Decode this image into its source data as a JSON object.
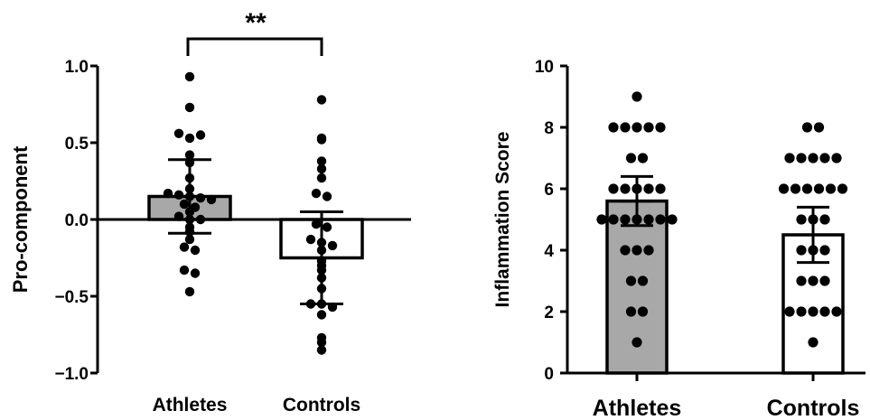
{
  "chart_data": [
    {
      "type": "bar",
      "ylabel": "Pro-component",
      "xlabel": "",
      "ylim": [
        -1.0,
        1.0
      ],
      "yticks": [
        "1.0",
        "0.5",
        "0.0",
        "−0.5",
        "−1.0"
      ],
      "categories": [
        "Athletes",
        "Controls"
      ],
      "bar_colors": [
        "#a8a8a8",
        "#ffffff"
      ],
      "series": [
        {
          "values": [
            0.15,
            -0.25
          ],
          "error": [
            0.24,
            0.3
          ]
        }
      ],
      "points": [
        [
          0.93,
          0.73,
          0.56,
          0.53,
          0.55,
          0.42,
          0.37,
          0.27,
          0.2,
          0.17,
          0.16,
          0.15,
          0.14,
          0.13,
          0.1,
          0.08,
          0.05,
          0.02,
          0.0,
          0.0,
          -0.05,
          -0.08,
          -0.13,
          -0.18,
          -0.2,
          -0.33,
          -0.35,
          -0.47
        ],
        [
          0.78,
          0.53,
          0.52,
          0.38,
          0.33,
          0.27,
          0.17,
          0.15,
          -0.03,
          -0.05,
          -0.13,
          -0.15,
          -0.17,
          -0.2,
          -0.27,
          -0.3,
          -0.33,
          -0.38,
          -0.45,
          -0.55,
          -0.55,
          -0.57,
          -0.62,
          -0.77,
          -0.8,
          -0.85
        ]
      ],
      "annotation": "**"
    },
    {
      "type": "bar",
      "ylabel": "Inflammation Score",
      "xlabel": "",
      "ylim": [
        0,
        10
      ],
      "yticks": [
        "10",
        "8",
        "6",
        "4",
        "2",
        "0"
      ],
      "categories": [
        "Athletes",
        "Controls"
      ],
      "bar_colors": [
        "#a8a8a8",
        "#ffffff"
      ],
      "series": [
        {
          "values": [
            5.6,
            4.5
          ],
          "error": [
            0.8,
            0.9
          ]
        }
      ],
      "points": [
        [
          9,
          8,
          8,
          8,
          8,
          8,
          7,
          7,
          6,
          6,
          6,
          6,
          6,
          5,
          5,
          5,
          5,
          5,
          5,
          5,
          4,
          4,
          4,
          3,
          3,
          2,
          2,
          1
        ],
        [
          8,
          8,
          7,
          7,
          7,
          7,
          7,
          6,
          6,
          6,
          6,
          6,
          6,
          5,
          5,
          5,
          4,
          4,
          4,
          3,
          3,
          3,
          2,
          2,
          2,
          2,
          2,
          1
        ]
      ]
    }
  ]
}
